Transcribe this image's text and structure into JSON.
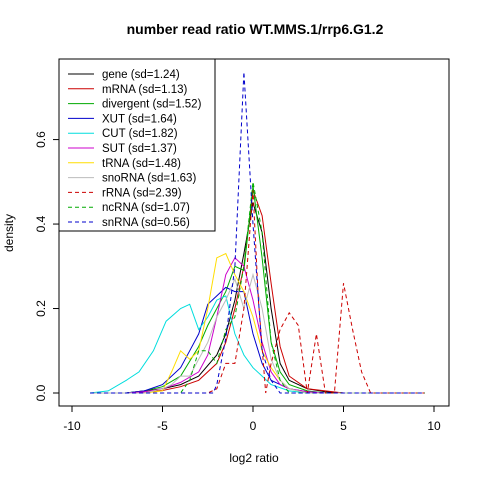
{
  "chart_data": {
    "type": "line",
    "title": "number read ratio WT.MMS.1/rrp6.G1.2",
    "xlabel": "log2 ratio",
    "ylabel": "density",
    "xlim": [
      -10,
      10
    ],
    "ylim": [
      0,
      0.76
    ],
    "xticks": [
      -10,
      -5,
      0,
      5,
      10
    ],
    "yticks": [
      0.0,
      0.2,
      0.4,
      0.6
    ],
    "xtick_labels": [
      "-10",
      "-5",
      "0",
      "5",
      "10"
    ],
    "ytick_labels": [
      "0.0",
      "0.2",
      "0.4",
      "0.6"
    ],
    "grid": false,
    "legend_position": "top-left",
    "series": [
      {
        "name": "gene (sd=1.24)",
        "color": "#000000",
        "dash": "solid",
        "points": [
          [
            -9,
            0
          ],
          [
            -7,
            0
          ],
          [
            -6,
            0.005
          ],
          [
            -5,
            0.01
          ],
          [
            -4,
            0.02
          ],
          [
            -3,
            0.04
          ],
          [
            -2,
            0.09
          ],
          [
            -1.5,
            0.14
          ],
          [
            -1,
            0.22
          ],
          [
            -0.5,
            0.33
          ],
          [
            0,
            0.45
          ],
          [
            0.5,
            0.38
          ],
          [
            1,
            0.2
          ],
          [
            1.5,
            0.07
          ],
          [
            2,
            0.03
          ],
          [
            3,
            0.01
          ],
          [
            4,
            0.003
          ],
          [
            5,
            0
          ],
          [
            9.5,
            0
          ]
        ]
      },
      {
        "name": "mRNA (sd=1.13)",
        "color": "#cc0000",
        "dash": "solid",
        "points": [
          [
            -9,
            0
          ],
          [
            -7,
            0
          ],
          [
            -6,
            0.003
          ],
          [
            -5,
            0.006
          ],
          [
            -4,
            0.015
          ],
          [
            -3,
            0.03
          ],
          [
            -2,
            0.07
          ],
          [
            -1.5,
            0.12
          ],
          [
            -1,
            0.2
          ],
          [
            -0.5,
            0.3
          ],
          [
            0,
            0.48
          ],
          [
            0.5,
            0.42
          ],
          [
            1,
            0.26
          ],
          [
            1.5,
            0.11
          ],
          [
            2,
            0.04
          ],
          [
            3,
            0.01
          ],
          [
            4,
            0.005
          ],
          [
            5,
            0
          ],
          [
            9.5,
            0
          ]
        ]
      },
      {
        "name": "divergent (sd=1.52)",
        "color": "#00aa00",
        "dash": "solid",
        "points": [
          [
            -9,
            0
          ],
          [
            -7,
            0
          ],
          [
            -6,
            0.005
          ],
          [
            -5,
            0.015
          ],
          [
            -4,
            0.04
          ],
          [
            -3,
            0.11
          ],
          [
            -2.5,
            0.16
          ],
          [
            -2,
            0.2
          ],
          [
            -1.5,
            0.24
          ],
          [
            -1,
            0.3
          ],
          [
            -0.5,
            0.29
          ],
          [
            0,
            0.49
          ],
          [
            0.5,
            0.32
          ],
          [
            1,
            0.12
          ],
          [
            1.5,
            0.05
          ],
          [
            2,
            0.02
          ],
          [
            3,
            0.005
          ],
          [
            4,
            0
          ],
          [
            9.5,
            0
          ]
        ]
      },
      {
        "name": "XUT (sd=1.64)",
        "color": "#0000cc",
        "dash": "solid",
        "points": [
          [
            -9,
            0
          ],
          [
            -7,
            0
          ],
          [
            -6,
            0.005
          ],
          [
            -5,
            0.02
          ],
          [
            -4,
            0.06
          ],
          [
            -3.5,
            0.1
          ],
          [
            -3,
            0.14
          ],
          [
            -2.5,
            0.21
          ],
          [
            -2,
            0.23
          ],
          [
            -1.5,
            0.25
          ],
          [
            -1,
            0.24
          ],
          [
            -0.5,
            0.24
          ],
          [
            0,
            0.14
          ],
          [
            0.5,
            0.07
          ],
          [
            1,
            0.03
          ],
          [
            2,
            0.01
          ],
          [
            3,
            0.003
          ],
          [
            4,
            0
          ],
          [
            9.5,
            0
          ]
        ]
      },
      {
        "name": "CUT (sd=1.82)",
        "color": "#00dddd",
        "dash": "solid",
        "points": [
          [
            -9,
            0
          ],
          [
            -8,
            0.005
          ],
          [
            -7,
            0.03
          ],
          [
            -6.3,
            0.05
          ],
          [
            -5.5,
            0.1
          ],
          [
            -4.8,
            0.17
          ],
          [
            -4,
            0.2
          ],
          [
            -3.5,
            0.21
          ],
          [
            -3,
            0.15
          ],
          [
            -2.5,
            0.18
          ],
          [
            -2,
            0.22
          ],
          [
            -1.5,
            0.23
          ],
          [
            -1,
            0.14
          ],
          [
            -0.5,
            0.09
          ],
          [
            0,
            0.06
          ],
          [
            0.5,
            0.04
          ],
          [
            1,
            0.02
          ],
          [
            2,
            0.005
          ],
          [
            3,
            0
          ],
          [
            9.5,
            0
          ]
        ]
      },
      {
        "name": "SUT (sd=1.37)",
        "color": "#cc00cc",
        "dash": "solid",
        "points": [
          [
            -9,
            0
          ],
          [
            -7,
            0
          ],
          [
            -6,
            0.003
          ],
          [
            -5,
            0.01
          ],
          [
            -4,
            0.025
          ],
          [
            -3,
            0.05
          ],
          [
            -2.5,
            0.09
          ],
          [
            -2,
            0.18
          ],
          [
            -1.5,
            0.28
          ],
          [
            -1,
            0.32
          ],
          [
            -0.5,
            0.3
          ],
          [
            0,
            0.22
          ],
          [
            0.5,
            0.12
          ],
          [
            1,
            0.05
          ],
          [
            1.5,
            0.02
          ],
          [
            2,
            0.01
          ],
          [
            3,
            0.003
          ],
          [
            4,
            0
          ],
          [
            9.5,
            0
          ]
        ]
      },
      {
        "name": "tRNA (sd=1.48)",
        "color": "#ffdd00",
        "dash": "solid",
        "points": [
          [
            -9,
            0
          ],
          [
            -6,
            0
          ],
          [
            -5,
            0.005
          ],
          [
            -4.5,
            0.05
          ],
          [
            -4,
            0.1
          ],
          [
            -3.5,
            0.08
          ],
          [
            -3,
            0.1
          ],
          [
            -2.5,
            0.2
          ],
          [
            -2,
            0.32
          ],
          [
            -1.5,
            0.33
          ],
          [
            -1,
            0.28
          ],
          [
            -0.5,
            0.24
          ],
          [
            0,
            0.18
          ],
          [
            0.5,
            0.1
          ],
          [
            1,
            0.06
          ],
          [
            1.5,
            0.03
          ],
          [
            2,
            0.01
          ],
          [
            3,
            0
          ],
          [
            9.5,
            0
          ]
        ]
      },
      {
        "name": "snoRNA (sd=1.63)",
        "color": "#bbbbbb",
        "dash": "solid",
        "points": [
          [
            -9,
            0
          ],
          [
            -6,
            0
          ],
          [
            -5,
            0.01
          ],
          [
            -4.5,
            0.02
          ],
          [
            -4,
            0.04
          ],
          [
            -3.5,
            0.04
          ],
          [
            -3,
            0.08
          ],
          [
            -2.5,
            0.12
          ],
          [
            -2,
            0.18
          ],
          [
            -1.5,
            0.22
          ],
          [
            -1,
            0.27
          ],
          [
            -0.5,
            0.2
          ],
          [
            0,
            0.28
          ],
          [
            0.5,
            0.2
          ],
          [
            1,
            0.08
          ],
          [
            1.5,
            0.03
          ],
          [
            2,
            0.01
          ],
          [
            3,
            0
          ],
          [
            9.5,
            0
          ]
        ]
      },
      {
        "name": "rRNA (sd=2.39)",
        "color": "#cc0000",
        "dash": "dashed",
        "points": [
          [
            -9,
            0
          ],
          [
            -2.5,
            0
          ],
          [
            -2,
            0.01
          ],
          [
            -1.5,
            0.07
          ],
          [
            -1,
            0.07
          ],
          [
            -0.5,
            0.2
          ],
          [
            0,
            0.48
          ],
          [
            0.3,
            0.22
          ],
          [
            0.7,
            0
          ],
          [
            1,
            0.07
          ],
          [
            1.5,
            0.15
          ],
          [
            2,
            0.19
          ],
          [
            2.5,
            0.16
          ],
          [
            3,
            0
          ],
          [
            3.5,
            0.14
          ],
          [
            4,
            0
          ],
          [
            4.5,
            0
          ],
          [
            5,
            0.26
          ],
          [
            5.5,
            0.15
          ],
          [
            6,
            0.05
          ],
          [
            6.5,
            0
          ],
          [
            9.5,
            0
          ]
        ]
      },
      {
        "name": "ncRNA (sd=1.07)",
        "color": "#00aa00",
        "dash": "dashed",
        "points": [
          [
            -9,
            0
          ],
          [
            -4,
            0
          ],
          [
            -3.5,
            0.03
          ],
          [
            -3,
            0.1
          ],
          [
            -2.5,
            0.1
          ],
          [
            -2,
            0.07
          ],
          [
            -1.5,
            0.15
          ],
          [
            -1,
            0.18
          ],
          [
            -0.5,
            0.3
          ],
          [
            0,
            0.5
          ],
          [
            0.5,
            0.38
          ],
          [
            1,
            0.12
          ],
          [
            1.5,
            0.03
          ],
          [
            2,
            0
          ],
          [
            9.5,
            0
          ]
        ]
      },
      {
        "name": "snRNA (sd=0.56)",
        "color": "#0000cc",
        "dash": "dashed",
        "points": [
          [
            -9,
            0
          ],
          [
            -2.2,
            0
          ],
          [
            -2,
            0.02
          ],
          [
            -1.5,
            0.13
          ],
          [
            -1,
            0.3
          ],
          [
            -0.5,
            0.76
          ],
          [
            0,
            0.4
          ],
          [
            0.5,
            0.1
          ],
          [
            1,
            0.03
          ],
          [
            1.5,
            0
          ],
          [
            9.5,
            0
          ]
        ]
      }
    ]
  }
}
